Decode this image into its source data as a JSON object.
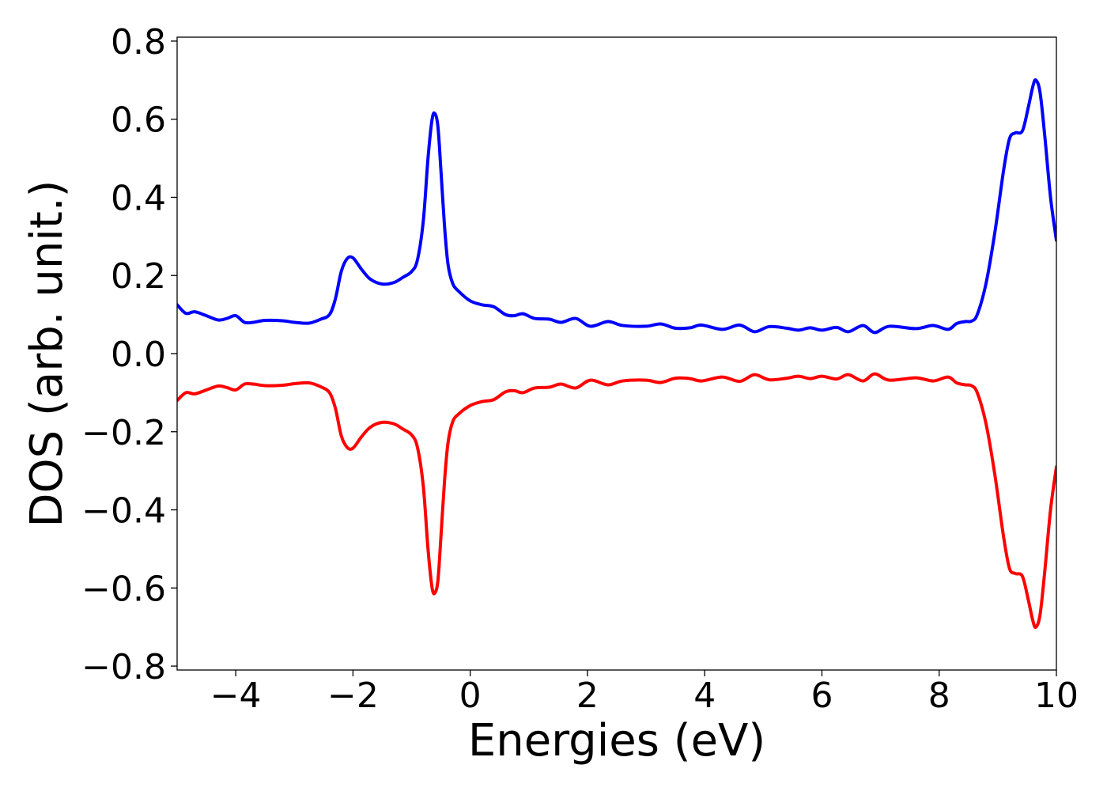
{
  "chart_data": {
    "type": "line",
    "title": "",
    "xlabel": "Energies (eV)",
    "ylabel": "DOS (arb. unit.)",
    "xlim": [
      -5,
      10
    ],
    "ylim": [
      -0.81,
      0.81
    ],
    "x_ticks": [
      -4,
      -2,
      0,
      2,
      4,
      6,
      8,
      10
    ],
    "x_tick_labels": [
      "−4",
      "−2",
      "0",
      "2",
      "4",
      "6",
      "8",
      "10"
    ],
    "y_ticks": [
      0.8,
      0.6,
      0.4,
      0.2,
      0.0,
      -0.2,
      -0.4,
      -0.6,
      -0.8
    ],
    "y_tick_labels": [
      "0.8",
      "0.6",
      "0.4",
      "0.2",
      "0.0",
      "−0.2",
      "−0.4",
      "−0.6",
      "−0.8"
    ],
    "grid": false,
    "legend": "none",
    "series": [
      {
        "color": "#0000ff",
        "points": [
          [
            -5.0,
            0.125
          ],
          [
            -4.85,
            0.103
          ],
          [
            -4.7,
            0.107
          ],
          [
            -4.5,
            0.097
          ],
          [
            -4.3,
            0.086
          ],
          [
            -4.15,
            0.09
          ],
          [
            -4.0,
            0.097
          ],
          [
            -3.85,
            0.08
          ],
          [
            -3.7,
            0.08
          ],
          [
            -3.5,
            0.085
          ],
          [
            -3.2,
            0.084
          ],
          [
            -3.0,
            0.08
          ],
          [
            -2.75,
            0.078
          ],
          [
            -2.55,
            0.088
          ],
          [
            -2.4,
            0.1
          ],
          [
            -2.3,
            0.14
          ],
          [
            -2.2,
            0.21
          ],
          [
            -2.1,
            0.243
          ],
          [
            -2.0,
            0.245
          ],
          [
            -1.85,
            0.215
          ],
          [
            -1.7,
            0.19
          ],
          [
            -1.5,
            0.178
          ],
          [
            -1.3,
            0.182
          ],
          [
            -1.15,
            0.195
          ],
          [
            -1.0,
            0.21
          ],
          [
            -0.9,
            0.24
          ],
          [
            -0.8,
            0.34
          ],
          [
            -0.72,
            0.5
          ],
          [
            -0.65,
            0.6
          ],
          [
            -0.6,
            0.614
          ],
          [
            -0.55,
            0.58
          ],
          [
            -0.5,
            0.47
          ],
          [
            -0.44,
            0.33
          ],
          [
            -0.38,
            0.23
          ],
          [
            -0.3,
            0.18
          ],
          [
            -0.2,
            0.16
          ],
          [
            0.0,
            0.135
          ],
          [
            0.2,
            0.125
          ],
          [
            0.4,
            0.12
          ],
          [
            0.6,
            0.1
          ],
          [
            0.75,
            0.097
          ],
          [
            0.9,
            0.102
          ],
          [
            1.1,
            0.09
          ],
          [
            1.35,
            0.088
          ],
          [
            1.55,
            0.08
          ],
          [
            1.8,
            0.09
          ],
          [
            2.05,
            0.07
          ],
          [
            2.35,
            0.082
          ],
          [
            2.6,
            0.072
          ],
          [
            3.0,
            0.07
          ],
          [
            3.25,
            0.076
          ],
          [
            3.5,
            0.065
          ],
          [
            3.75,
            0.066
          ],
          [
            3.95,
            0.073
          ],
          [
            4.3,
            0.062
          ],
          [
            4.6,
            0.073
          ],
          [
            4.85,
            0.056
          ],
          [
            5.1,
            0.069
          ],
          [
            5.4,
            0.065
          ],
          [
            5.6,
            0.06
          ],
          [
            5.8,
            0.066
          ],
          [
            6.0,
            0.06
          ],
          [
            6.25,
            0.067
          ],
          [
            6.45,
            0.056
          ],
          [
            6.7,
            0.072
          ],
          [
            6.9,
            0.054
          ],
          [
            7.15,
            0.07
          ],
          [
            7.6,
            0.064
          ],
          [
            7.9,
            0.072
          ],
          [
            8.15,
            0.062
          ],
          [
            8.3,
            0.077
          ],
          [
            8.45,
            0.082
          ],
          [
            8.55,
            0.083
          ],
          [
            8.65,
            0.1
          ],
          [
            8.8,
            0.18
          ],
          [
            8.95,
            0.31
          ],
          [
            9.1,
            0.47
          ],
          [
            9.2,
            0.55
          ],
          [
            9.3,
            0.565
          ],
          [
            9.42,
            0.57
          ],
          [
            9.52,
            0.63
          ],
          [
            9.6,
            0.685
          ],
          [
            9.65,
            0.7
          ],
          [
            9.72,
            0.67
          ],
          [
            9.8,
            0.56
          ],
          [
            9.9,
            0.4
          ],
          [
            10.0,
            0.29
          ]
        ]
      },
      {
        "color": "#ff0000",
        "points": [
          [
            -5.0,
            -0.12
          ],
          [
            -4.85,
            -0.1
          ],
          [
            -4.7,
            -0.103
          ],
          [
            -4.5,
            -0.093
          ],
          [
            -4.3,
            -0.083
          ],
          [
            -4.15,
            -0.087
          ],
          [
            -4.0,
            -0.093
          ],
          [
            -3.85,
            -0.078
          ],
          [
            -3.7,
            -0.078
          ],
          [
            -3.5,
            -0.082
          ],
          [
            -3.2,
            -0.081
          ],
          [
            -3.0,
            -0.077
          ],
          [
            -2.75,
            -0.075
          ],
          [
            -2.55,
            -0.085
          ],
          [
            -2.4,
            -0.1
          ],
          [
            -2.3,
            -0.14
          ],
          [
            -2.2,
            -0.21
          ],
          [
            -2.1,
            -0.24
          ],
          [
            -2.0,
            -0.242
          ],
          [
            -1.85,
            -0.212
          ],
          [
            -1.7,
            -0.188
          ],
          [
            -1.5,
            -0.176
          ],
          [
            -1.3,
            -0.18
          ],
          [
            -1.15,
            -0.193
          ],
          [
            -1.0,
            -0.208
          ],
          [
            -0.9,
            -0.24
          ],
          [
            -0.8,
            -0.34
          ],
          [
            -0.72,
            -0.5
          ],
          [
            -0.65,
            -0.6
          ],
          [
            -0.6,
            -0.612
          ],
          [
            -0.55,
            -0.58
          ],
          [
            -0.5,
            -0.47
          ],
          [
            -0.44,
            -0.33
          ],
          [
            -0.38,
            -0.23
          ],
          [
            -0.3,
            -0.175
          ],
          [
            -0.2,
            -0.155
          ],
          [
            0.0,
            -0.133
          ],
          [
            0.2,
            -0.123
          ],
          [
            0.4,
            -0.118
          ],
          [
            0.6,
            -0.098
          ],
          [
            0.75,
            -0.095
          ],
          [
            0.9,
            -0.1
          ],
          [
            1.1,
            -0.088
          ],
          [
            1.35,
            -0.086
          ],
          [
            1.55,
            -0.078
          ],
          [
            1.8,
            -0.088
          ],
          [
            2.05,
            -0.068
          ],
          [
            2.35,
            -0.08
          ],
          [
            2.6,
            -0.07
          ],
          [
            3.0,
            -0.068
          ],
          [
            3.25,
            -0.074
          ],
          [
            3.5,
            -0.063
          ],
          [
            3.75,
            -0.064
          ],
          [
            3.95,
            -0.07
          ],
          [
            4.3,
            -0.06
          ],
          [
            4.6,
            -0.071
          ],
          [
            4.85,
            -0.054
          ],
          [
            5.1,
            -0.067
          ],
          [
            5.4,
            -0.063
          ],
          [
            5.6,
            -0.058
          ],
          [
            5.8,
            -0.064
          ],
          [
            6.0,
            -0.058
          ],
          [
            6.25,
            -0.065
          ],
          [
            6.45,
            -0.054
          ],
          [
            6.7,
            -0.07
          ],
          [
            6.9,
            -0.052
          ],
          [
            7.15,
            -0.068
          ],
          [
            7.6,
            -0.062
          ],
          [
            7.9,
            -0.07
          ],
          [
            8.15,
            -0.06
          ],
          [
            8.3,
            -0.075
          ],
          [
            8.45,
            -0.08
          ],
          [
            8.55,
            -0.082
          ],
          [
            8.65,
            -0.1
          ],
          [
            8.8,
            -0.18
          ],
          [
            8.95,
            -0.31
          ],
          [
            9.1,
            -0.47
          ],
          [
            9.2,
            -0.55
          ],
          [
            9.3,
            -0.563
          ],
          [
            9.42,
            -0.57
          ],
          [
            9.52,
            -0.63
          ],
          [
            9.6,
            -0.685
          ],
          [
            9.65,
            -0.7
          ],
          [
            9.72,
            -0.67
          ],
          [
            9.8,
            -0.56
          ],
          [
            9.9,
            -0.4
          ],
          [
            10.0,
            -0.29
          ]
        ]
      }
    ]
  }
}
